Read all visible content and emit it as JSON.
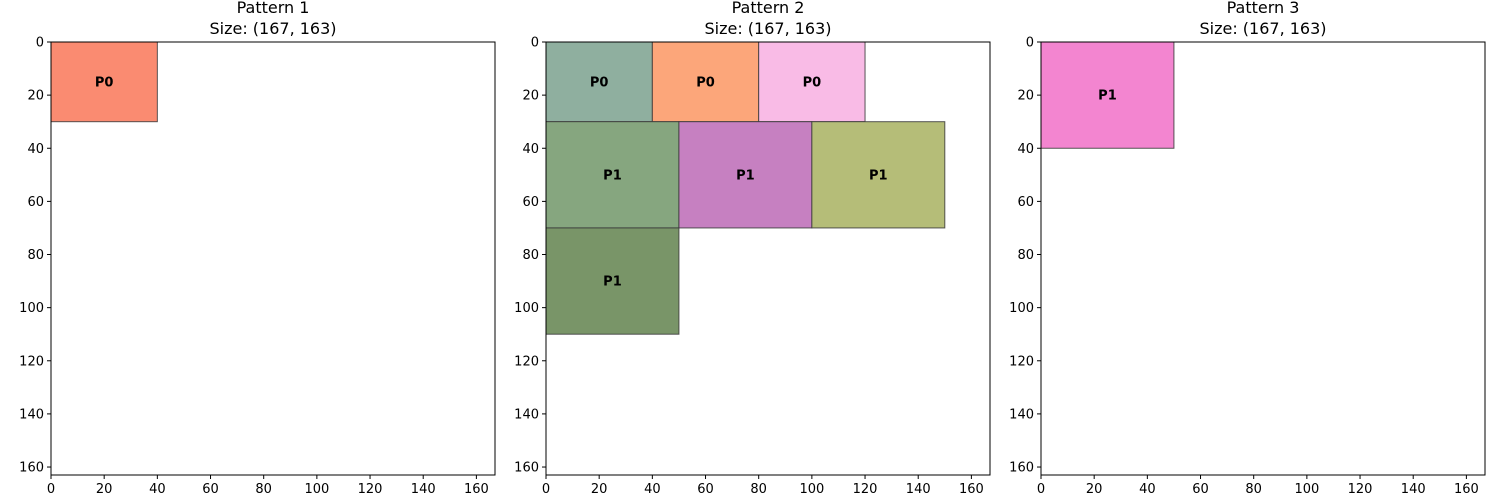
{
  "chart_data": [
    {
      "type": "rectangle-packing",
      "title": "Pattern 1",
      "subtitle": "Size: (167, 163)",
      "xlim": [
        0,
        167
      ],
      "ylim": [
        163,
        0
      ],
      "y_inverted": true,
      "grid": false,
      "xticks": [
        0,
        20,
        40,
        60,
        80,
        100,
        120,
        140,
        160
      ],
      "yticks": [
        0,
        20,
        40,
        60,
        80,
        100,
        120,
        140,
        160
      ],
      "rects": [
        {
          "label": "P0",
          "x": 0,
          "y": 0,
          "w": 40,
          "h": 30,
          "color": "#fa8b71"
        }
      ]
    },
    {
      "type": "rectangle-packing",
      "title": "Pattern 2",
      "subtitle": "Size: (167, 163)",
      "xlim": [
        0,
        167
      ],
      "ylim": [
        163,
        0
      ],
      "y_inverted": true,
      "grid": false,
      "xticks": [
        0,
        20,
        40,
        60,
        80,
        100,
        120,
        140,
        160
      ],
      "yticks": [
        0,
        20,
        40,
        60,
        80,
        100,
        120,
        140,
        160
      ],
      "rects": [
        {
          "label": "P0",
          "x": 0,
          "y": 0,
          "w": 40,
          "h": 30,
          "color": "#8faf9f"
        },
        {
          "label": "P0",
          "x": 40,
          "y": 0,
          "w": 40,
          "h": 30,
          "color": "#fca67a"
        },
        {
          "label": "P0",
          "x": 80,
          "y": 0,
          "w": 40,
          "h": 30,
          "color": "#f9bbe6"
        },
        {
          "label": "P1",
          "x": 0,
          "y": 30,
          "w": 50,
          "h": 40,
          "color": "#86a67f"
        },
        {
          "label": "P1",
          "x": 50,
          "y": 30,
          "w": 50,
          "h": 40,
          "color": "#c680c1"
        },
        {
          "label": "P1",
          "x": 100,
          "y": 30,
          "w": 50,
          "h": 40,
          "color": "#b5bd78"
        },
        {
          "label": "P1",
          "x": 0,
          "y": 70,
          "w": 50,
          "h": 40,
          "color": "#799568"
        }
      ]
    },
    {
      "type": "rectangle-packing",
      "title": "Pattern 3",
      "subtitle": "Size: (167, 163)",
      "xlim": [
        0,
        167
      ],
      "ylim": [
        163,
        0
      ],
      "y_inverted": true,
      "grid": false,
      "xticks": [
        0,
        20,
        40,
        60,
        80,
        100,
        120,
        140,
        160
      ],
      "yticks": [
        0,
        20,
        40,
        60,
        80,
        100,
        120,
        140,
        160
      ],
      "rects": [
        {
          "label": "P1",
          "x": 0,
          "y": 0,
          "w": 50,
          "h": 40,
          "color": "#f385d0"
        }
      ]
    }
  ]
}
